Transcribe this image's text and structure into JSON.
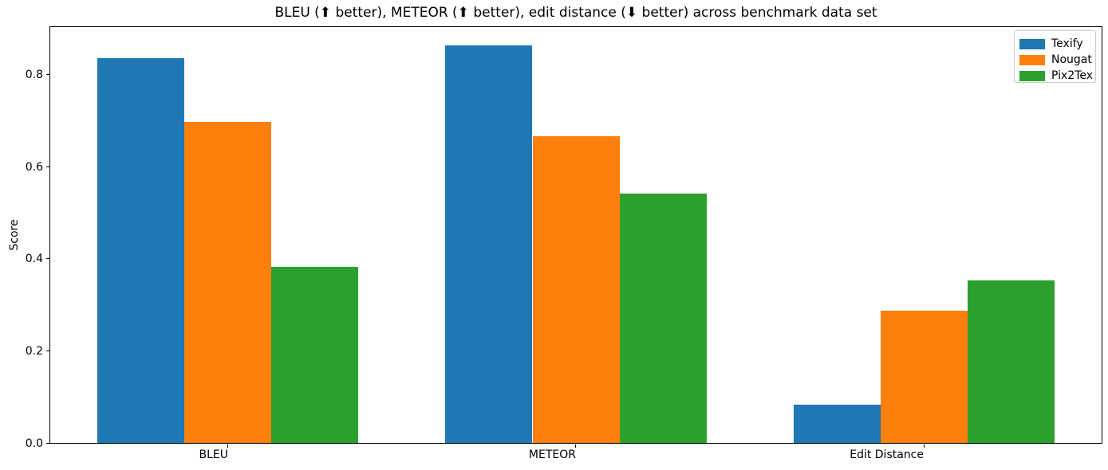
{
  "chart_data": {
    "type": "bar",
    "title": "BLEU (⬆ better), METEOR (⬆ better), edit distance (⬇ better) across benchmark data set",
    "ylabel": "Score",
    "xlabel": "",
    "categories": [
      "BLEU",
      "METEOR",
      "Edit Distance"
    ],
    "series": [
      {
        "name": "Texify",
        "color": "#1f77b4",
        "values": [
          0.838,
          0.865,
          0.084
        ]
      },
      {
        "name": "Nougat",
        "color": "#ff7f0e",
        "values": [
          0.698,
          0.668,
          0.288
        ]
      },
      {
        "name": "Pix2Tex",
        "color": "#2ca02c",
        "values": [
          0.383,
          0.543,
          0.353
        ]
      }
    ],
    "yticks": [
      "0.0",
      "0.2",
      "0.4",
      "0.6",
      "0.8"
    ],
    "ylim": [
      0,
      0.905
    ],
    "xlim": [
      -0.5125,
      2.5125
    ],
    "bar_width_units": 0.25,
    "grid": false,
    "legend": {
      "position": "upper right",
      "entries": [
        "Texify",
        "Nougat",
        "Pix2Tex"
      ]
    }
  }
}
